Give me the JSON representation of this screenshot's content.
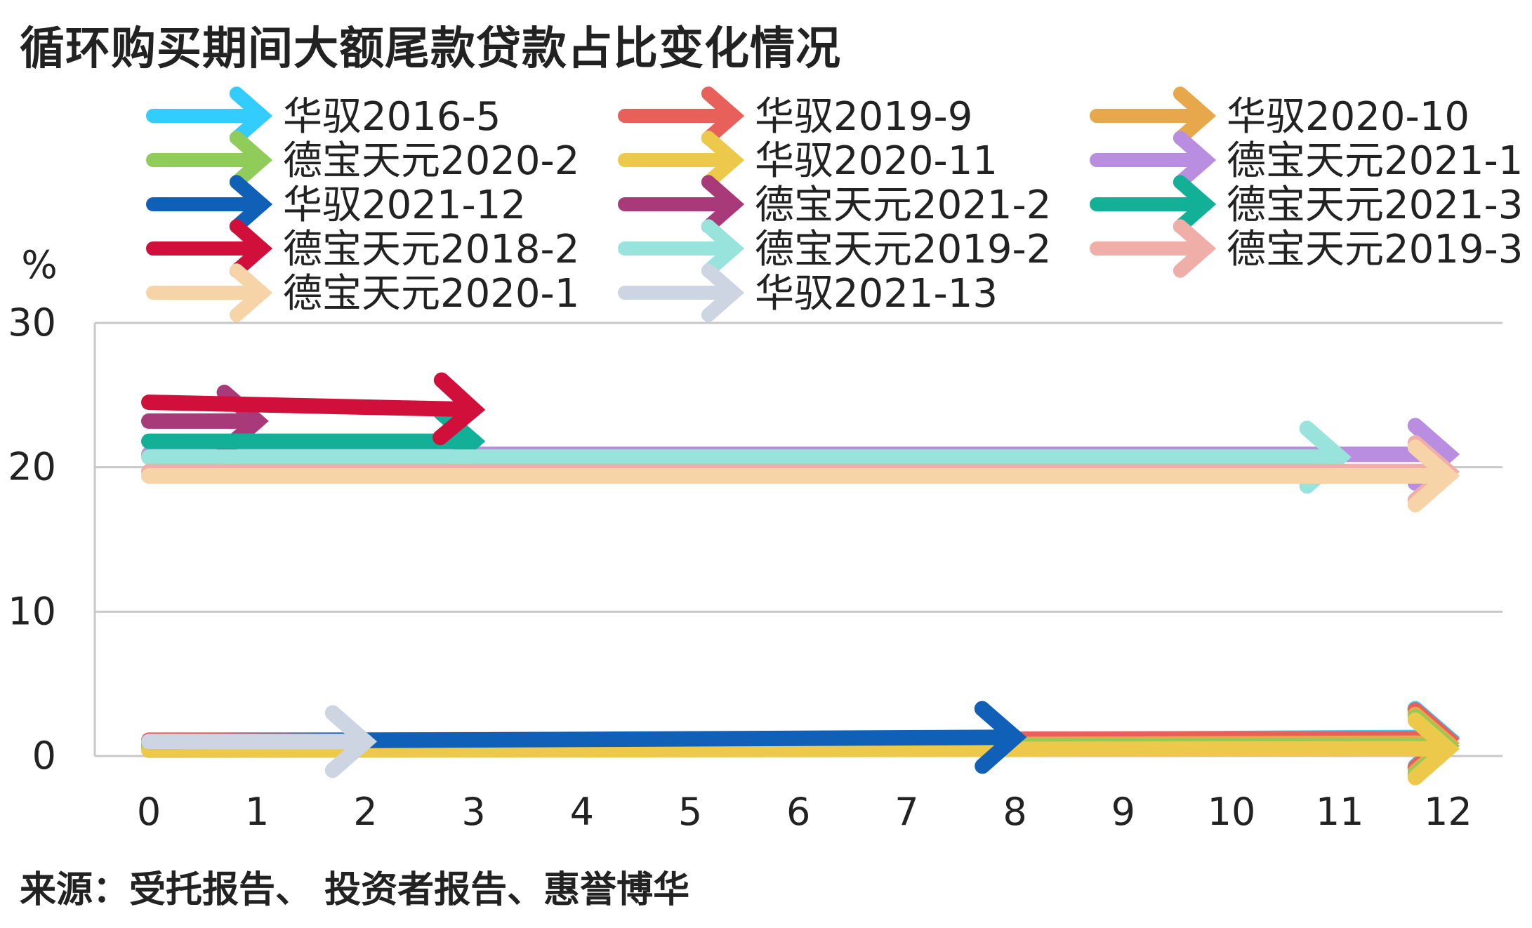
{
  "title": "循环购买期间大额尾款贷款占比变化情况",
  "source": "来源：受托报告、 投资者报告、惠誉博华",
  "chart_data": {
    "type": "line",
    "title": "循环购买期间大额尾款贷款占比变化情况",
    "ylabel": "%",
    "xlabel": "",
    "xlim": [
      0,
      12
    ],
    "ylim": [
      0,
      30
    ],
    "x_ticks": [
      0,
      1,
      2,
      3,
      4,
      5,
      6,
      7,
      8,
      9,
      10,
      11,
      12
    ],
    "y_ticks": [
      0,
      10,
      20,
      30
    ],
    "grid": true,
    "legend_position": "top",
    "series": [
      {
        "name": "华驭2016-5",
        "color": "#33ccff",
        "x": [
          0,
          12
        ],
        "y": [
          0.8,
          1.3
        ]
      },
      {
        "name": "华驭2019-9",
        "color": "#e8605a",
        "x": [
          0,
          12
        ],
        "y": [
          1.1,
          1.2
        ]
      },
      {
        "name": "华驭2020-10",
        "color": "#e6a84a",
        "x": [
          0,
          12
        ],
        "y": [
          0.6,
          0.9
        ]
      },
      {
        "name": "德宝天元2020-2",
        "color": "#8fcc5a",
        "x": [
          0,
          12
        ],
        "y": [
          0.7,
          0.7
        ]
      },
      {
        "name": "华驭2020-11",
        "color": "#ecc94a",
        "x": [
          0,
          12
        ],
        "y": [
          0.4,
          0.5
        ]
      },
      {
        "name": "德宝天元2021-1",
        "color": "#b98ee0",
        "x": [
          0,
          12
        ],
        "y": [
          20.9,
          20.9
        ]
      },
      {
        "name": "华驭2021-12",
        "color": "#1060b8",
        "x": [
          0,
          8
        ],
        "y": [
          1.0,
          1.3
        ]
      },
      {
        "name": "德宝天元2021-2",
        "color": "#a83a7a",
        "x": [
          0,
          1
        ],
        "y": [
          23.2,
          23.2
        ]
      },
      {
        "name": "德宝天元2021-3",
        "color": "#12b096",
        "x": [
          0,
          3
        ],
        "y": [
          21.8,
          21.8
        ]
      },
      {
        "name": "德宝天元2018-2",
        "color": "#d0103a",
        "x": [
          0,
          3
        ],
        "y": [
          24.5,
          24.0
        ]
      },
      {
        "name": "德宝天元2019-2",
        "color": "#98e4dc",
        "x": [
          0,
          11
        ],
        "y": [
          20.7,
          20.7
        ]
      },
      {
        "name": "德宝天元2019-3",
        "color": "#f0aea8",
        "x": [
          0,
          12
        ],
        "y": [
          19.7,
          19.7
        ]
      },
      {
        "name": "德宝天元2020-1",
        "color": "#f6d4a8",
        "x": [
          0,
          12
        ],
        "y": [
          19.4,
          19.4
        ]
      },
      {
        "name": "华驭2021-13",
        "color": "#cdd4e2",
        "x": [
          0,
          2
        ],
        "y": [
          1.0,
          1.0
        ]
      }
    ]
  }
}
